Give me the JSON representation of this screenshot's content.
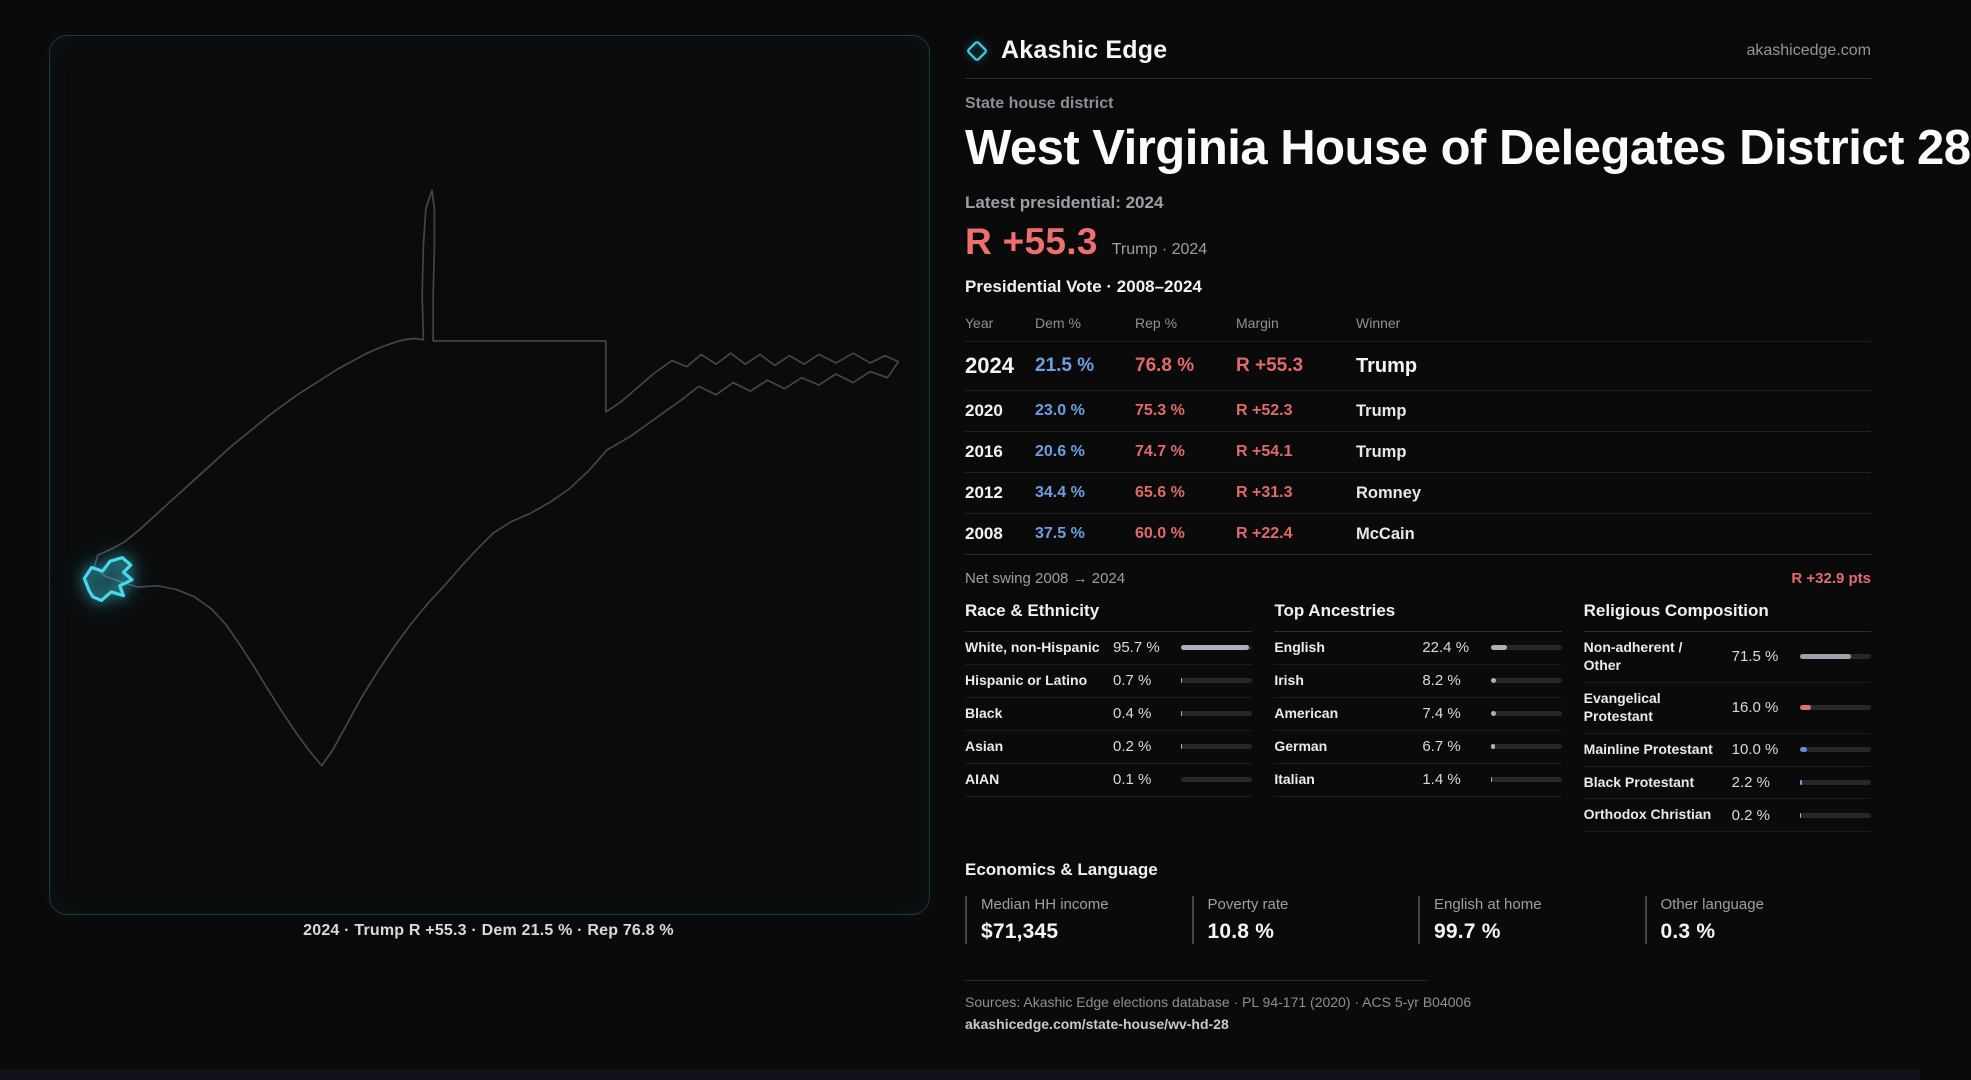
{
  "brand": {
    "name": "Akashic Edge",
    "site": "akashicedge.com"
  },
  "colors": {
    "accent": "#38cfe0",
    "dem": "#6d9fe3",
    "rep": "#e56b6b"
  },
  "map": {
    "caption": "2024 · Trump R +55.3 · Dem 21.5 % · Rep 76.8 %"
  },
  "header": {
    "kicker": "State house district",
    "title": "West Virginia House of Delegates District 28",
    "latest": "Latest presidential: 2024",
    "margin": "R +55.3",
    "margin_context": "Trump · 2024"
  },
  "table": {
    "title": "Presidential Vote · 2008–2024",
    "columns": [
      "Year",
      "Dem %",
      "Rep %",
      "Margin",
      "Winner"
    ],
    "rows": [
      {
        "year": "2024",
        "dem": "21.5 %",
        "rep": "76.8 %",
        "margin": "R +55.3",
        "winner": "Trump"
      },
      {
        "year": "2020",
        "dem": "23.0 %",
        "rep": "75.3 %",
        "margin": "R +52.3",
        "winner": "Trump"
      },
      {
        "year": "2016",
        "dem": "20.6 %",
        "rep": "74.7 %",
        "margin": "R +54.1",
        "winner": "Trump"
      },
      {
        "year": "2012",
        "dem": "34.4 %",
        "rep": "65.6 %",
        "margin": "R +31.3",
        "winner": "Romney"
      },
      {
        "year": "2008",
        "dem": "37.5 %",
        "rep": "60.0 %",
        "margin": "R +22.4",
        "winner": "McCain"
      }
    ]
  },
  "swing": {
    "label": "Net swing 2008 → 2024",
    "value": "R +32.9 pts"
  },
  "demographics": {
    "race": {
      "title": "Race & Ethnicity",
      "rows": [
        {
          "label": "White, non-Hispanic",
          "value": "95.7 %",
          "pct": 95.7,
          "color": "#aab1bb"
        },
        {
          "label": "Hispanic or Latino",
          "value": "0.7 %",
          "pct": 0.7,
          "color": "#aab1bb"
        },
        {
          "label": "Black",
          "value": "0.4 %",
          "pct": 0.4,
          "color": "#aab1bb"
        },
        {
          "label": "Asian",
          "value": "0.2 %",
          "pct": 0.2,
          "color": "#aab1bb"
        },
        {
          "label": "AIAN",
          "value": "0.1 %",
          "pct": 0.1,
          "color": "#aab1bb"
        }
      ]
    },
    "ancestry": {
      "title": "Top Ancestries",
      "rows": [
        {
          "label": "English",
          "value": "22.4 %",
          "pct": 22.4,
          "color": "#aab1bb"
        },
        {
          "label": "Irish",
          "value": "8.2 %",
          "pct": 8.2,
          "color": "#aab1bb"
        },
        {
          "label": "American",
          "value": "7.4 %",
          "pct": 7.4,
          "color": "#aab1bb"
        },
        {
          "label": "German",
          "value": "6.7 %",
          "pct": 6.7,
          "color": "#aab1bb"
        },
        {
          "label": "Italian",
          "value": "1.4 %",
          "pct": 1.4,
          "color": "#aab1bb"
        }
      ]
    },
    "religion": {
      "title": "Religious Composition",
      "rows": [
        {
          "label": "Non-adherent / Other",
          "value": "71.5 %",
          "pct": 71.5,
          "color": "#9aa2ad"
        },
        {
          "label": "Evangelical Protestant",
          "value": "16.0 %",
          "pct": 16.0,
          "color": "#e06c75"
        },
        {
          "label": "Mainline Protestant",
          "value": "10.0 %",
          "pct": 10.0,
          "color": "#5b8fd9"
        },
        {
          "label": "Black Protestant",
          "value": "2.2 %",
          "pct": 2.2,
          "color": "#a78bda"
        },
        {
          "label": "Orthodox Christian",
          "value": "0.2 %",
          "pct": 0.2,
          "color": "#aab1bb"
        }
      ]
    }
  },
  "economics": {
    "title": "Economics & Language",
    "stats": [
      {
        "label": "Median HH income",
        "value": "$71,345"
      },
      {
        "label": "Poverty rate",
        "value": "10.8 %"
      },
      {
        "label": "English at home",
        "value": "99.7 %"
      },
      {
        "label": "Other language",
        "value": "0.3 %"
      }
    ]
  },
  "footer": {
    "sources": "Sources: Akashic Edge elections database · PL 94-171 (2020) · ACS 5-yr B04006",
    "link": "akashicedge.com/state-house/wv-hd-28"
  }
}
